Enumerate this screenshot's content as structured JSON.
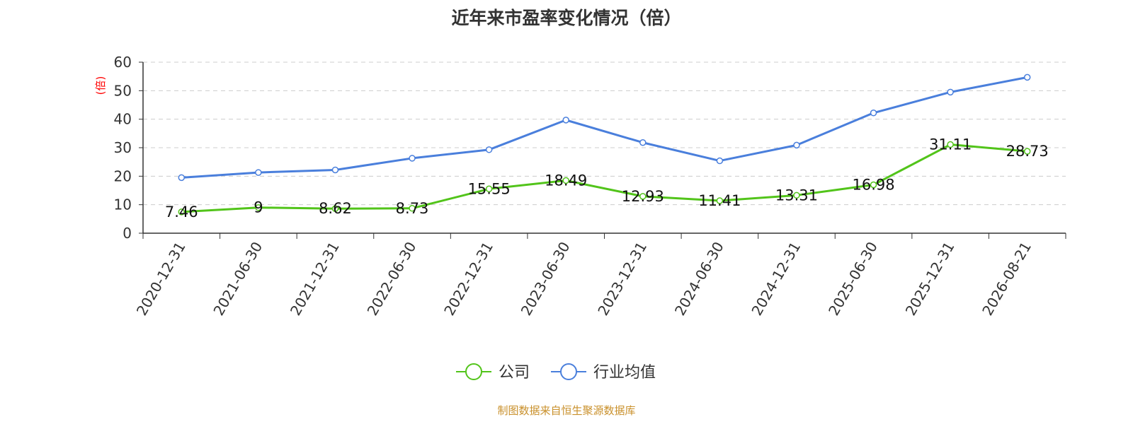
{
  "chart_data": {
    "type": "line",
    "title": "近年来市盈率变化情况（倍）",
    "ylabel": "(倍)",
    "xlabel": "",
    "ylim": [
      0,
      60
    ],
    "yticks": [
      0,
      10,
      20,
      30,
      40,
      50,
      60
    ],
    "grid": true,
    "legend_position": "bottom-center",
    "categories": [
      "2020-12-31",
      "2021-06-30",
      "2021-12-31",
      "2022-06-30",
      "2022-12-31",
      "2023-06-30",
      "2023-12-31",
      "2024-06-30",
      "2024-12-31",
      "2025-06-30",
      "2025-12-31",
      "2026-08-21"
    ],
    "series": [
      {
        "name": "公司",
        "color": "#52c41a",
        "show_labels": true,
        "values": [
          7.46,
          9,
          8.62,
          8.73,
          15.55,
          18.49,
          12.93,
          11.41,
          13.31,
          16.98,
          31.11,
          28.73
        ]
      },
      {
        "name": "行业均值",
        "color": "#4a7fdc",
        "show_labels": false,
        "values": [
          19.5,
          21.3,
          22.2,
          26.3,
          29.3,
          39.7,
          31.8,
          25.4,
          30.9,
          42.2,
          49.5,
          54.7
        ]
      }
    ],
    "ylabel_color": "#ff0000"
  },
  "footer": {
    "source": "制图数据来自恒生聚源数据库",
    "source_color": "#c9902b"
  }
}
